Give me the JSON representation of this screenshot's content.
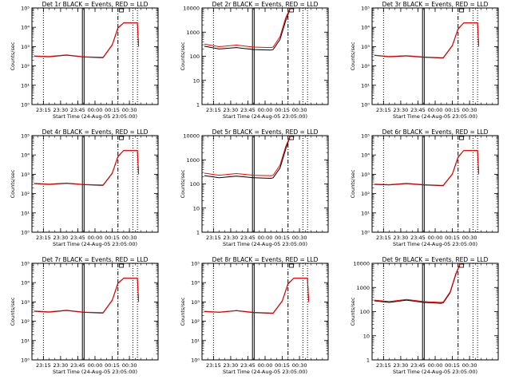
{
  "chart_data": [
    {
      "type": "line",
      "title": "Det 1r BLACK = Events, RED = LLD",
      "xlabel": "Start Time (24-Aug-05 23:05:00)",
      "ylabel": "Counts/sec",
      "yscale": "log",
      "ylim": [
        1,
        100000
      ],
      "ytick_labels": [
        "10⁰",
        "10¹",
        "10²",
        "10³",
        "10⁴",
        "10⁵"
      ],
      "xlim": [
        0,
        110
      ],
      "xticks": [
        10,
        25,
        40,
        55,
        70,
        85
      ],
      "xtick_labels": [
        "23:15",
        "23:30",
        "23:45",
        "00:00",
        "00:15",
        "00:30"
      ],
      "vlines": [
        {
          "x": 10,
          "style": "dotted"
        },
        {
          "x": 44,
          "style": "solid"
        },
        {
          "x": 45.5,
          "style": "solid"
        },
        {
          "x": 75,
          "style": "dashdot"
        },
        {
          "x": 88,
          "style": "dotted"
        },
        {
          "x": 92,
          "style": "dotted"
        }
      ],
      "box_marker_x": 78,
      "series": [
        {
          "color": "#000000",
          "x": [
            2,
            15,
            30,
            45,
            60,
            62,
            70,
            75,
            80,
            92,
            93
          ],
          "y": [
            320,
            300,
            360,
            290,
            270,
            270,
            1200,
            9000,
            17000,
            17000,
            1000
          ]
        },
        {
          "color": "#ff0000",
          "x": [
            2,
            15,
            30,
            45,
            60,
            62,
            70,
            75,
            80,
            92,
            93
          ],
          "y": [
            330,
            310,
            370,
            300,
            280,
            280,
            1250,
            9500,
            17000,
            17000,
            1000
          ]
        }
      ]
    },
    {
      "type": "line",
      "title": "Det 2r BLACK = Events, RED = LLD",
      "xlabel": "Start Time (24-Aug-05 23:05:00)",
      "ylabel": "Counts/sec",
      "yscale": "log",
      "ylim": [
        1,
        10000
      ],
      "ytick_labels": [
        "1",
        "10",
        "100",
        "1000",
        "10000"
      ],
      "xlim": [
        0,
        110
      ],
      "xticks": [
        10,
        25,
        40,
        55,
        70,
        85
      ],
      "xtick_labels": [
        "23:15",
        "23:30",
        "23:45",
        "00:00",
        "00:15",
        "00:30"
      ],
      "vlines": [
        {
          "x": 10,
          "style": "dotted"
        },
        {
          "x": 44,
          "style": "solid"
        },
        {
          "x": 45.5,
          "style": "solid"
        },
        {
          "x": 75,
          "style": "dashdot"
        },
        {
          "x": 88,
          "style": "dotted"
        },
        {
          "x": 92,
          "style": "dotted"
        }
      ],
      "box_marker_x": 78,
      "series": [
        {
          "color": "#000000",
          "x": [
            2,
            15,
            30,
            45,
            60,
            62,
            68,
            73,
            77
          ],
          "y": [
            260,
            200,
            230,
            190,
            180,
            190,
            500,
            3000,
            10000
          ]
        },
        {
          "color": "#ff0000",
          "x": [
            2,
            15,
            30,
            45,
            60,
            62,
            68,
            73,
            77
          ],
          "y": [
            320,
            250,
            290,
            240,
            230,
            240,
            650,
            4000,
            10000
          ]
        }
      ]
    },
    {
      "type": "line",
      "title": "Det 3r BLACK = Events, RED = LLD",
      "xlabel": "Start Time (24-Aug-05 23:05:00)",
      "ylabel": "Counts/sec",
      "yscale": "log",
      "ylim": [
        1,
        100000
      ],
      "ytick_labels": [
        "10⁰",
        "10¹",
        "10²",
        "10³",
        "10⁴",
        "10⁵"
      ],
      "xlim": [
        0,
        110
      ],
      "xticks": [
        10,
        25,
        40,
        55,
        70,
        85
      ],
      "xtick_labels": [
        "23:15",
        "23:30",
        "23:45",
        "00:00",
        "00:15",
        "00:30"
      ],
      "vlines": [
        {
          "x": 10,
          "style": "dotted"
        },
        {
          "x": 44,
          "style": "solid"
        },
        {
          "x": 45.5,
          "style": "solid"
        },
        {
          "x": 75,
          "style": "dashdot"
        },
        {
          "x": 88,
          "style": "dotted"
        },
        {
          "x": 92,
          "style": "dotted"
        }
      ],
      "box_marker_x": 78,
      "series": [
        {
          "color": "#000000",
          "x": [
            2,
            15,
            30,
            45,
            60,
            62,
            70,
            75,
            80,
            92,
            93
          ],
          "y": [
            350,
            300,
            330,
            280,
            260,
            260,
            1100,
            8000,
            17000,
            17000,
            1000
          ]
        },
        {
          "color": "#ff0000",
          "x": [
            2,
            15,
            30,
            45,
            60,
            62,
            70,
            75,
            80,
            92,
            93
          ],
          "y": [
            360,
            310,
            340,
            290,
            270,
            270,
            1150,
            8500,
            17000,
            17000,
            1000
          ]
        }
      ]
    },
    {
      "type": "line",
      "title": "Det 4r BLACK = Events, RED = LLD",
      "xlabel": "Start Time (24-Aug-05 23:05:00)",
      "ylabel": "Counts/sec",
      "yscale": "log",
      "ylim": [
        1,
        100000
      ],
      "ytick_labels": [
        "10⁰",
        "10¹",
        "10²",
        "10³",
        "10⁴",
        "10⁵"
      ],
      "xlim": [
        0,
        110
      ],
      "xticks": [
        10,
        25,
        40,
        55,
        70,
        85
      ],
      "xtick_labels": [
        "23:15",
        "23:30",
        "23:45",
        "00:00",
        "00:15",
        "00:30"
      ],
      "vlines": [
        {
          "x": 10,
          "style": "dotted"
        },
        {
          "x": 44,
          "style": "solid"
        },
        {
          "x": 45.5,
          "style": "solid"
        },
        {
          "x": 75,
          "style": "dashdot"
        },
        {
          "x": 88,
          "style": "dotted"
        },
        {
          "x": 92,
          "style": "dotted"
        }
      ],
      "box_marker_x": 78,
      "series": [
        {
          "color": "#000000",
          "x": [
            2,
            15,
            30,
            45,
            60,
            62,
            70,
            75,
            80,
            92,
            93
          ],
          "y": [
            330,
            300,
            340,
            290,
            270,
            270,
            1100,
            8000,
            17000,
            17000,
            1000
          ]
        },
        {
          "color": "#ff0000",
          "x": [
            2,
            15,
            30,
            45,
            60,
            62,
            70,
            75,
            80,
            92,
            93
          ],
          "y": [
            340,
            310,
            350,
            300,
            280,
            280,
            1150,
            8500,
            17000,
            17000,
            1000
          ]
        }
      ]
    },
    {
      "type": "line",
      "title": "Det 5r BLACK = Events, RED = LLD",
      "xlabel": "Start Time (24-Aug-05 23:05:00)",
      "ylabel": "Counts/sec",
      "yscale": "log",
      "ylim": [
        1,
        10000
      ],
      "ytick_labels": [
        "1",
        "10",
        "100",
        "1000",
        "10000"
      ],
      "xlim": [
        0,
        110
      ],
      "xticks": [
        10,
        25,
        40,
        55,
        70,
        85
      ],
      "xtick_labels": [
        "23:15",
        "23:30",
        "23:45",
        "00:00",
        "00:15",
        "00:30"
      ],
      "vlines": [
        {
          "x": 10,
          "style": "dotted"
        },
        {
          "x": 44,
          "style": "solid"
        },
        {
          "x": 45.5,
          "style": "solid"
        },
        {
          "x": 75,
          "style": "dashdot"
        },
        {
          "x": 88,
          "style": "dotted"
        },
        {
          "x": 92,
          "style": "dotted"
        }
      ],
      "box_marker_x": 78,
      "series": [
        {
          "color": "#000000",
          "x": [
            2,
            15,
            30,
            45,
            60,
            62,
            68,
            73,
            77
          ],
          "y": [
            220,
            180,
            210,
            180,
            170,
            180,
            450,
            2800,
            10000
          ]
        },
        {
          "color": "#ff0000",
          "x": [
            2,
            15,
            30,
            45,
            60,
            62,
            68,
            73,
            77
          ],
          "y": [
            280,
            230,
            270,
            230,
            220,
            230,
            600,
            3600,
            10000
          ]
        }
      ]
    },
    {
      "type": "line",
      "title": "Det 6r BLACK = Events, RED = LLD",
      "xlabel": "Start Time (24-Aug-05 23:05:00)",
      "ylabel": "Counts/sec",
      "yscale": "log",
      "ylim": [
        1,
        100000
      ],
      "ytick_labels": [
        "10⁰",
        "10¹",
        "10²",
        "10³",
        "10⁴",
        "10⁵"
      ],
      "xlim": [
        0,
        110
      ],
      "xticks": [
        10,
        25,
        40,
        55,
        70,
        85
      ],
      "xtick_labels": [
        "23:15",
        "23:30",
        "23:45",
        "00:00",
        "00:15",
        "00:30"
      ],
      "vlines": [
        {
          "x": 10,
          "style": "dotted"
        },
        {
          "x": 44,
          "style": "solid"
        },
        {
          "x": 45.5,
          "style": "solid"
        },
        {
          "x": 75,
          "style": "dashdot"
        },
        {
          "x": 88,
          "style": "dotted"
        },
        {
          "x": 92,
          "style": "dotted"
        }
      ],
      "box_marker_x": 78,
      "series": [
        {
          "color": "#000000",
          "x": [
            2,
            15,
            30,
            45,
            60,
            62,
            70,
            75,
            80,
            92,
            93
          ],
          "y": [
            300,
            280,
            330,
            280,
            260,
            260,
            1000,
            7500,
            17000,
            17000,
            1000
          ]
        },
        {
          "color": "#ff0000",
          "x": [
            2,
            15,
            30,
            45,
            60,
            62,
            70,
            75,
            80,
            92,
            93
          ],
          "y": [
            310,
            290,
            340,
            290,
            270,
            270,
            1050,
            8000,
            17000,
            17000,
            1000
          ]
        }
      ]
    },
    {
      "type": "line",
      "title": "Det 7r BLACK = Events, RED = LLD",
      "xlabel": "Start Time (24-Aug-05 23:05:00)",
      "ylabel": "Counts/sec",
      "yscale": "log",
      "ylim": [
        1,
        100000
      ],
      "ytick_labels": [
        "10⁰",
        "10¹",
        "10²",
        "10³",
        "10⁴",
        "10⁵"
      ],
      "xlim": [
        0,
        110
      ],
      "xticks": [
        10,
        25,
        40,
        55,
        70,
        85
      ],
      "xtick_labels": [
        "23:15",
        "23:30",
        "23:45",
        "00:00",
        "00:15",
        "00:30"
      ],
      "vlines": [
        {
          "x": 10,
          "style": "dotted"
        },
        {
          "x": 44,
          "style": "solid"
        },
        {
          "x": 45.5,
          "style": "solid"
        },
        {
          "x": 75,
          "style": "dashdot"
        },
        {
          "x": 88,
          "style": "dotted"
        },
        {
          "x": 92,
          "style": "dotted"
        }
      ],
      "box_marker_x": 78,
      "series": [
        {
          "color": "#000000",
          "x": [
            2,
            15,
            30,
            45,
            60,
            62,
            70,
            75,
            80,
            92,
            93
          ],
          "y": [
            330,
            300,
            360,
            290,
            270,
            270,
            1200,
            9000,
            17000,
            17000,
            1000
          ]
        },
        {
          "color": "#ff0000",
          "x": [
            2,
            15,
            30,
            45,
            60,
            62,
            70,
            75,
            80,
            92,
            93
          ],
          "y": [
            340,
            310,
            370,
            300,
            280,
            280,
            1250,
            9500,
            17000,
            17000,
            1000
          ]
        }
      ]
    },
    {
      "type": "line",
      "title": "Det 8r BLACK = Events, RED = LLD",
      "xlabel": "Start Time (24-Aug-05 23:05:00)",
      "ylabel": "Counts/sec",
      "yscale": "log",
      "ylim": [
        1,
        100000
      ],
      "ytick_labels": [
        "10⁰",
        "10¹",
        "10²",
        "10³",
        "10⁴",
        "10⁵"
      ],
      "xlim": [
        0,
        110
      ],
      "xticks": [
        10,
        25,
        40,
        55,
        70,
        85
      ],
      "xtick_labels": [
        "23:15",
        "23:30",
        "23:45",
        "00:00",
        "00:15",
        "00:30"
      ],
      "vlines": [
        {
          "x": 10,
          "style": "dotted"
        },
        {
          "x": 44,
          "style": "solid"
        },
        {
          "x": 45.5,
          "style": "solid"
        },
        {
          "x": 75,
          "style": "dashdot"
        },
        {
          "x": 88,
          "style": "dotted"
        },
        {
          "x": 92,
          "style": "dotted"
        }
      ],
      "box_marker_x": 78,
      "series": [
        {
          "color": "#000000",
          "x": [
            2,
            15,
            30,
            45,
            60,
            62,
            70,
            75,
            80,
            92,
            93
          ],
          "y": [
            320,
            290,
            350,
            280,
            260,
            260,
            1100,
            8500,
            17000,
            17000,
            1000
          ]
        },
        {
          "color": "#ff0000",
          "x": [
            2,
            15,
            30,
            45,
            60,
            62,
            70,
            75,
            80,
            92,
            93
          ],
          "y": [
            330,
            300,
            360,
            290,
            270,
            270,
            1150,
            9000,
            17000,
            17000,
            1000
          ]
        }
      ]
    },
    {
      "type": "line",
      "title": "Det 9r BLACK = Events, RED = LLD",
      "xlabel": "Start Time (24-Aug-05 23:05:00)",
      "ylabel": "Counts/sec",
      "yscale": "log",
      "ylim": [
        1,
        10000
      ],
      "ytick_labels": [
        "1",
        "10",
        "100",
        "1000",
        "10000"
      ],
      "xlim": [
        0,
        110
      ],
      "xticks": [
        10,
        25,
        40,
        55,
        70,
        85
      ],
      "xtick_labels": [
        "23:15",
        "23:30",
        "23:45",
        "00:00",
        "00:15",
        "00:30"
      ],
      "vlines": [
        {
          "x": 10,
          "style": "dotted"
        },
        {
          "x": 44,
          "style": "solid"
        },
        {
          "x": 45.5,
          "style": "solid"
        },
        {
          "x": 75,
          "style": "dashdot"
        },
        {
          "x": 88,
          "style": "dotted"
        },
        {
          "x": 92,
          "style": "dotted"
        }
      ],
      "box_marker_x": 78,
      "series": [
        {
          "color": "#000000",
          "x": [
            2,
            15,
            30,
            45,
            60,
            62,
            68,
            73,
            77
          ],
          "y": [
            280,
            240,
            300,
            240,
            220,
            230,
            600,
            3500,
            10000
          ]
        },
        {
          "color": "#ff0000",
          "x": [
            2,
            15,
            30,
            45,
            60,
            62,
            68,
            73,
            77
          ],
          "y": [
            300,
            260,
            320,
            260,
            240,
            250,
            650,
            3800,
            10000
          ]
        }
      ]
    }
  ]
}
